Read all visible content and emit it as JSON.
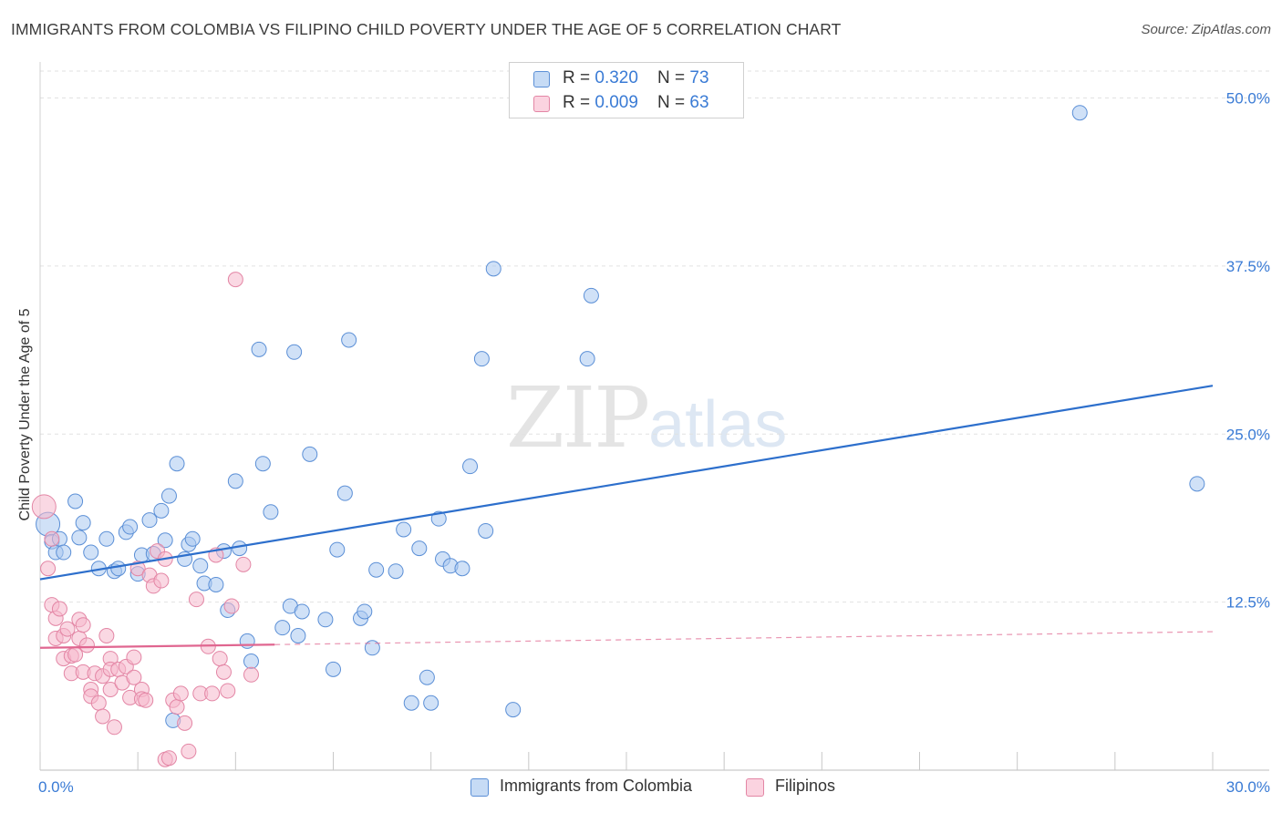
{
  "title": "IMMIGRANTS FROM COLOMBIA VS FILIPINO CHILD POVERTY UNDER THE AGE OF 5 CORRELATION CHART",
  "source": "Source: ZipAtlas.com",
  "watermark": {
    "zip": "ZIP",
    "atlas": "atlas"
  },
  "legend": {
    "rows": [
      {
        "r_label": "R = ",
        "r_value": "0.320",
        "n_label": "N = ",
        "n_value": "73",
        "color": "#a9c8f0"
      },
      {
        "r_label": "R = ",
        "r_value": "0.009",
        "n_label": "N = ",
        "n_value": "63",
        "color": "#f6b8cc"
      }
    ]
  },
  "chart_data": {
    "type": "scatter",
    "xlabel": "",
    "ylabel": "Child Poverty Under the Age of 5",
    "xlim": [
      0,
      30
    ],
    "ylim": [
      0,
      52
    ],
    "x_tick_labels": [
      "0.0%",
      "30.0%"
    ],
    "y_ticks": [
      12.5,
      25.0,
      37.5,
      50.0
    ],
    "y_tick_labels": [
      "12.5%",
      "25.0%",
      "37.5%",
      "50.0%"
    ],
    "grid": true,
    "series": [
      {
        "name": "Immigrants from Colombia",
        "color": "#a9c8f0",
        "edge": "#5b8fd6",
        "trend": {
          "x": [
            0,
            30
          ],
          "y": [
            14.2,
            28.6
          ],
          "color": "#2d6fcc",
          "dashed_from": null
        },
        "points": [
          [
            0.2,
            18.3
          ],
          [
            0.3,
            17.0
          ],
          [
            0.4,
            16.2
          ],
          [
            0.5,
            17.2
          ],
          [
            0.6,
            16.2
          ],
          [
            0.9,
            20.0
          ],
          [
            1.0,
            17.3
          ],
          [
            1.1,
            18.4
          ],
          [
            1.3,
            16.2
          ],
          [
            1.5,
            15.0
          ],
          [
            1.7,
            17.2
          ],
          [
            1.9,
            14.8
          ],
          [
            2.0,
            15.0
          ],
          [
            2.2,
            17.7
          ],
          [
            2.3,
            18.1
          ],
          [
            2.5,
            14.6
          ],
          [
            2.6,
            16.0
          ],
          [
            2.8,
            18.6
          ],
          [
            2.9,
            16.1
          ],
          [
            3.1,
            19.3
          ],
          [
            3.2,
            17.1
          ],
          [
            3.3,
            20.4
          ],
          [
            3.5,
            22.8
          ],
          [
            3.7,
            15.7
          ],
          [
            3.8,
            16.8
          ],
          [
            3.9,
            17.2
          ],
          [
            4.1,
            15.2
          ],
          [
            4.2,
            13.9
          ],
          [
            4.5,
            13.8
          ],
          [
            4.7,
            16.3
          ],
          [
            4.8,
            11.9
          ],
          [
            5.0,
            21.5
          ],
          [
            5.1,
            16.5
          ],
          [
            5.3,
            9.6
          ],
          [
            5.4,
            8.1
          ],
          [
            5.6,
            31.3
          ],
          [
            5.7,
            22.8
          ],
          [
            5.9,
            19.2
          ],
          [
            6.2,
            10.6
          ],
          [
            6.4,
            12.2
          ],
          [
            6.5,
            31.1
          ],
          [
            6.6,
            10.0
          ],
          [
            6.7,
            11.8
          ],
          [
            6.9,
            23.5
          ],
          [
            7.3,
            11.2
          ],
          [
            7.5,
            7.5
          ],
          [
            7.6,
            16.4
          ],
          [
            7.8,
            20.6
          ],
          [
            7.9,
            32.0
          ],
          [
            8.2,
            11.3
          ],
          [
            8.3,
            11.8
          ],
          [
            8.5,
            9.1
          ],
          [
            8.6,
            14.9
          ],
          [
            9.1,
            14.8
          ],
          [
            9.3,
            17.9
          ],
          [
            9.5,
            5.0
          ],
          [
            9.7,
            16.5
          ],
          [
            9.9,
            6.9
          ],
          [
            10.0,
            5.0
          ],
          [
            10.2,
            18.7
          ],
          [
            10.3,
            15.7
          ],
          [
            10.5,
            15.2
          ],
          [
            10.8,
            15.0
          ],
          [
            11.0,
            22.6
          ],
          [
            11.3,
            30.6
          ],
          [
            11.4,
            17.8
          ],
          [
            11.6,
            37.3
          ],
          [
            12.1,
            4.5
          ],
          [
            14.0,
            30.6
          ],
          [
            14.1,
            35.3
          ],
          [
            26.6,
            48.9
          ],
          [
            29.6,
            21.3
          ],
          [
            3.4,
            3.7
          ]
        ]
      },
      {
        "name": "Filipinos",
        "color": "#f6b8cc",
        "edge": "#e386a5",
        "trend": {
          "x": [
            0,
            30
          ],
          "y": [
            9.1,
            10.3
          ],
          "color": "#e06690",
          "dashed_from": 6.0
        },
        "points": [
          [
            0.1,
            19.6
          ],
          [
            0.2,
            15.0
          ],
          [
            0.3,
            17.2
          ],
          [
            0.3,
            12.3
          ],
          [
            0.4,
            11.3
          ],
          [
            0.4,
            9.8
          ],
          [
            0.5,
            12.0
          ],
          [
            0.6,
            10.0
          ],
          [
            0.6,
            8.3
          ],
          [
            0.7,
            10.5
          ],
          [
            0.8,
            8.5
          ],
          [
            0.8,
            7.2
          ],
          [
            0.9,
            8.6
          ],
          [
            1.0,
            9.8
          ],
          [
            1.0,
            11.2
          ],
          [
            1.1,
            10.8
          ],
          [
            1.1,
            7.3
          ],
          [
            1.2,
            9.3
          ],
          [
            1.3,
            6.0
          ],
          [
            1.3,
            5.5
          ],
          [
            1.4,
            7.2
          ],
          [
            1.5,
            5.0
          ],
          [
            1.6,
            7.0
          ],
          [
            1.6,
            4.0
          ],
          [
            1.7,
            10.0
          ],
          [
            1.8,
            8.3
          ],
          [
            1.8,
            7.5
          ],
          [
            1.8,
            6.0
          ],
          [
            1.9,
            3.2
          ],
          [
            2.0,
            7.5
          ],
          [
            2.1,
            6.5
          ],
          [
            2.2,
            7.7
          ],
          [
            2.3,
            5.4
          ],
          [
            2.4,
            8.4
          ],
          [
            2.4,
            6.9
          ],
          [
            2.5,
            15.0
          ],
          [
            2.6,
            6.0
          ],
          [
            2.6,
            5.3
          ],
          [
            2.7,
            5.2
          ],
          [
            2.8,
            14.5
          ],
          [
            2.9,
            13.7
          ],
          [
            3.0,
            16.3
          ],
          [
            3.1,
            14.1
          ],
          [
            3.2,
            15.7
          ],
          [
            3.2,
            0.8
          ],
          [
            3.3,
            0.9
          ],
          [
            3.4,
            5.2
          ],
          [
            3.5,
            4.7
          ],
          [
            3.6,
            5.7
          ],
          [
            3.7,
            3.5
          ],
          [
            3.8,
            1.4
          ],
          [
            4.0,
            12.7
          ],
          [
            4.1,
            5.7
          ],
          [
            4.3,
            9.2
          ],
          [
            4.4,
            5.7
          ],
          [
            4.5,
            16.0
          ],
          [
            4.6,
            8.3
          ],
          [
            4.7,
            7.3
          ],
          [
            4.8,
            5.9
          ],
          [
            4.9,
            12.2
          ],
          [
            5.0,
            36.5
          ],
          [
            5.2,
            15.3
          ],
          [
            5.4,
            7.1
          ]
        ]
      }
    ]
  }
}
